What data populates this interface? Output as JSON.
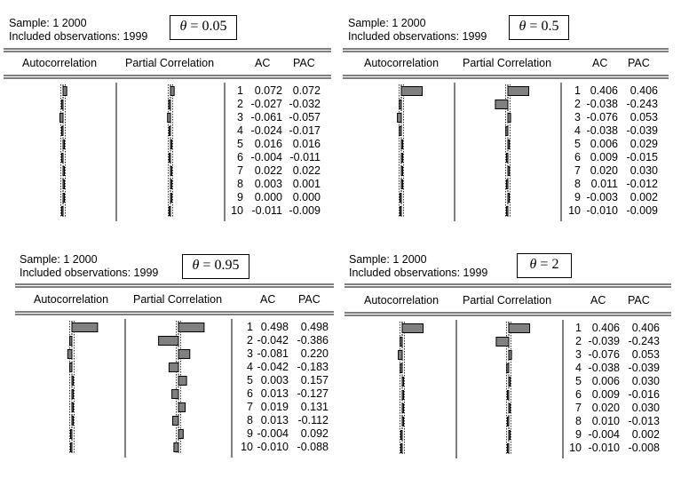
{
  "panels": [
    {
      "sample": "Sample: 1 2000",
      "included": "Included observations: 1999",
      "theta_value": "0.05",
      "headers": {
        "ac": "Autocorrelation",
        "pac": "Partial Correlation",
        "ac_col": "AC",
        "pac_col": "PAC"
      }
    },
    {
      "sample": "Sample: 1 2000",
      "included": "Included observations: 1999",
      "theta_value": "0.5",
      "headers": {
        "ac": "Autocorrelation",
        "pac": "Partial Correlation",
        "ac_col": "AC",
        "pac_col": "PAC"
      }
    },
    {
      "sample": "Sample: 1 2000",
      "included": "Included observations: 1999",
      "theta_value": "0.95",
      "headers": {
        "ac": "Autocorrelation",
        "pac": "Partial Correlation",
        "ac_col": "AC",
        "pac_col": "PAC"
      }
    },
    {
      "sample": "Sample: 1 2000",
      "included": "Included observations: 1999",
      "theta_value": "2",
      "headers": {
        "ac": "Autocorrelation",
        "pac": "Partial Correlation",
        "ac_col": "AC",
        "pac_col": "PAC"
      }
    }
  ],
  "theta_symbol": "θ",
  "equals": " = ",
  "chart_data": [
    {
      "type": "bar",
      "theta": 0.05,
      "lags": [
        1,
        2,
        3,
        4,
        5,
        6,
        7,
        8,
        9,
        10
      ],
      "series": [
        {
          "name": "AC",
          "values": [
            0.072,
            -0.027,
            -0.061,
            -0.024,
            0.016,
            -0.004,
            0.022,
            0.003,
            0.0,
            -0.011
          ]
        },
        {
          "name": "PAC",
          "values": [
            0.072,
            -0.032,
            -0.057,
            -0.017,
            0.016,
            -0.011,
            0.022,
            0.001,
            0.0,
            -0.009
          ]
        }
      ]
    },
    {
      "type": "bar",
      "theta": 0.5,
      "lags": [
        1,
        2,
        3,
        4,
        5,
        6,
        7,
        8,
        9,
        10
      ],
      "series": [
        {
          "name": "AC",
          "values": [
            0.406,
            -0.038,
            -0.076,
            -0.038,
            0.006,
            0.009,
            0.02,
            0.011,
            -0.003,
            -0.01
          ]
        },
        {
          "name": "PAC",
          "values": [
            0.406,
            -0.243,
            0.053,
            -0.039,
            0.029,
            -0.015,
            0.03,
            -0.012,
            0.002,
            -0.009
          ]
        }
      ]
    },
    {
      "type": "bar",
      "theta": 0.95,
      "lags": [
        1,
        2,
        3,
        4,
        5,
        6,
        7,
        8,
        9,
        10
      ],
      "series": [
        {
          "name": "AC",
          "values": [
            0.498,
            -0.042,
            -0.081,
            -0.042,
            0.003,
            0.013,
            0.019,
            0.013,
            -0.004,
            -0.01
          ]
        },
        {
          "name": "PAC",
          "values": [
            0.498,
            -0.386,
            0.22,
            -0.183,
            0.157,
            -0.127,
            0.131,
            -0.112,
            0.092,
            -0.088
          ]
        }
      ]
    },
    {
      "type": "bar",
      "theta": 2,
      "lags": [
        1,
        2,
        3,
        4,
        5,
        6,
        7,
        8,
        9,
        10
      ],
      "series": [
        {
          "name": "AC",
          "values": [
            0.406,
            -0.039,
            -0.076,
            -0.038,
            0.006,
            0.009,
            0.02,
            0.01,
            -0.004,
            -0.01
          ]
        },
        {
          "name": "PAC",
          "values": [
            0.406,
            -0.243,
            0.053,
            -0.039,
            0.03,
            -0.016,
            0.03,
            -0.013,
            0.002,
            -0.008
          ]
        }
      ]
    }
  ]
}
